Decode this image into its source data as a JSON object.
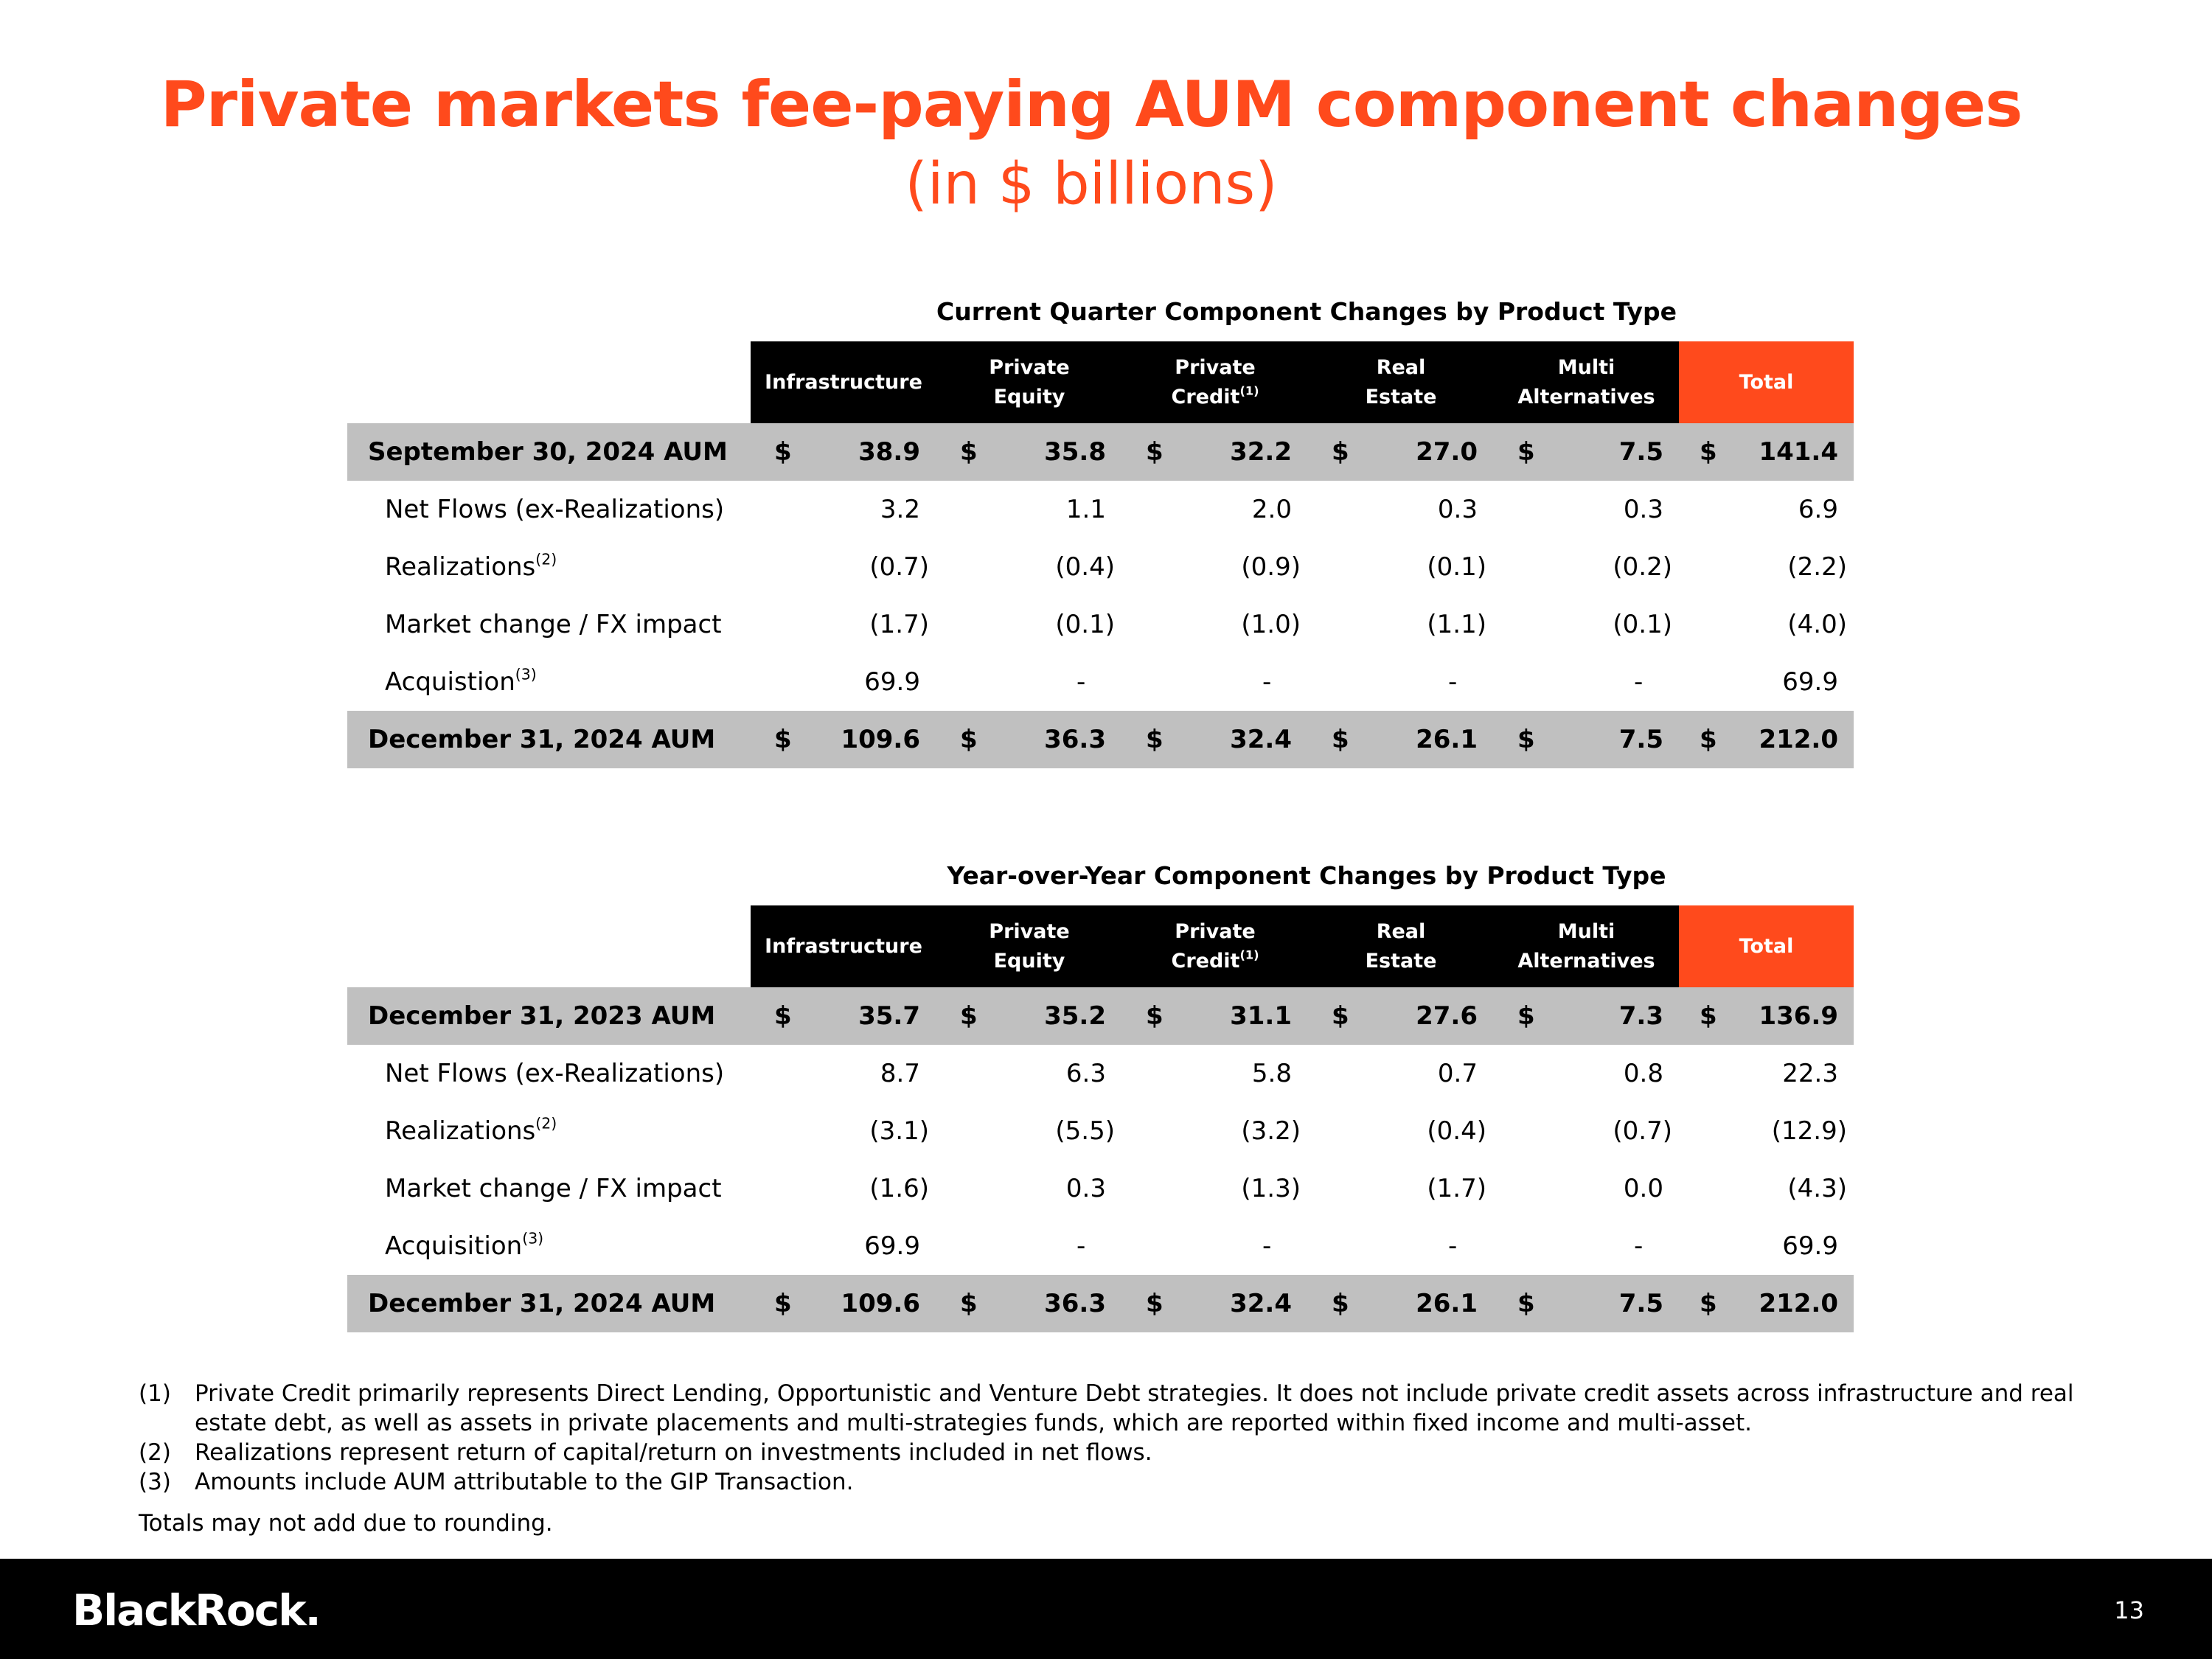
{
  "header": {
    "title": "Private markets fee-paying AUM component changes",
    "subtitle": "(in $ billions)"
  },
  "tables": [
    {
      "title": "Current Quarter Component Changes by Product Type",
      "columns": [
        {
          "lines": [
            "Infrastructure"
          ]
        },
        {
          "lines": [
            "Private",
            "Equity"
          ]
        },
        {
          "lines": [
            "Private",
            "Credit"
          ],
          "note": "(1)"
        },
        {
          "lines": [
            "Real",
            "Estate"
          ]
        },
        {
          "lines": [
            "Multi",
            "Alternatives"
          ]
        },
        {
          "lines": [
            "Total"
          ]
        }
      ],
      "rows": [
        {
          "label": "September 30, 2024 AUM",
          "currency": "$",
          "cells": [
            "38.9",
            "35.8",
            "32.2",
            "27.0",
            "7.5",
            "141.4"
          ]
        },
        {
          "label": "Net Flows (ex-Realizations)",
          "cells": [
            "3.2",
            "1.1",
            "2.0",
            "0.3",
            "0.3",
            "6.9"
          ]
        },
        {
          "label": "Realizations",
          "note": "(2)",
          "cells": [
            "(0.7)",
            "(0.4)",
            "(0.9)",
            "(0.1)",
            "(0.2)",
            "(2.2)"
          ]
        },
        {
          "label": "Market change / FX impact",
          "cells": [
            "(1.7)",
            "(0.1)",
            "(1.0)",
            "(1.1)",
            "(0.1)",
            "(4.0)"
          ]
        },
        {
          "label": "Acquistion",
          "note": "(3)",
          "cells": [
            "69.9",
            "-",
            "-",
            "-",
            "-",
            "69.9"
          ]
        },
        {
          "label": "December 31, 2024 AUM",
          "currency": "$",
          "cells": [
            "109.6",
            "36.3",
            "32.4",
            "26.1",
            "7.5",
            "212.0"
          ]
        }
      ]
    },
    {
      "title": "Year-over-Year Component Changes by Product Type",
      "columns": [
        {
          "lines": [
            "Infrastructure"
          ]
        },
        {
          "lines": [
            "Private",
            "Equity"
          ]
        },
        {
          "lines": [
            "Private",
            "Credit"
          ],
          "note": "(1)"
        },
        {
          "lines": [
            "Real",
            "Estate"
          ]
        },
        {
          "lines": [
            "Multi",
            "Alternatives"
          ]
        },
        {
          "lines": [
            "Total"
          ]
        }
      ],
      "rows": [
        {
          "label": "December 31, 2023 AUM",
          "currency": "$",
          "cells": [
            "35.7",
            "35.2",
            "31.1",
            "27.6",
            "7.3",
            "136.9"
          ]
        },
        {
          "label": "Net Flows (ex-Realizations)",
          "cells": [
            "8.7",
            "6.3",
            "5.8",
            "0.7",
            "0.8",
            "22.3"
          ]
        },
        {
          "label": "Realizations",
          "note": "(2)",
          "cells": [
            "(3.1)",
            "(5.5)",
            "(3.2)",
            "(0.4)",
            "(0.7)",
            "(12.9)"
          ]
        },
        {
          "label": "Market change / FX impact",
          "cells": [
            "(1.6)",
            "0.3",
            "(1.3)",
            "(1.7)",
            "0.0",
            "(4.3)"
          ]
        },
        {
          "label": "Acquisition",
          "note": "(3)",
          "cells": [
            "69.9",
            "-",
            "-",
            "-",
            "-",
            "69.9"
          ]
        },
        {
          "label": "December 31, 2024 AUM",
          "currency": "$",
          "cells": [
            "109.6",
            "36.3",
            "32.4",
            "26.1",
            "7.5",
            "212.0"
          ]
        }
      ]
    }
  ],
  "footnotes": [
    {
      "marker": "(1)",
      "text": "Private Credit primarily represents Direct Lending, Opportunistic and Venture Debt strategies. It does not include private credit assets across infrastructure and real estate debt, as well as assets in private placements and multi-strategies funds, which are reported within fixed income and multi-asset."
    },
    {
      "marker": "(2)",
      "text": "Realizations represent return of capital/return on investments included in net flows."
    },
    {
      "marker": "(3)",
      "text": "Amounts include AUM attributable to the GIP Transaction."
    }
  ],
  "note": "Totals may not add due to rounding.",
  "footer": {
    "logo": "BlackRock.",
    "page": "13"
  }
}
